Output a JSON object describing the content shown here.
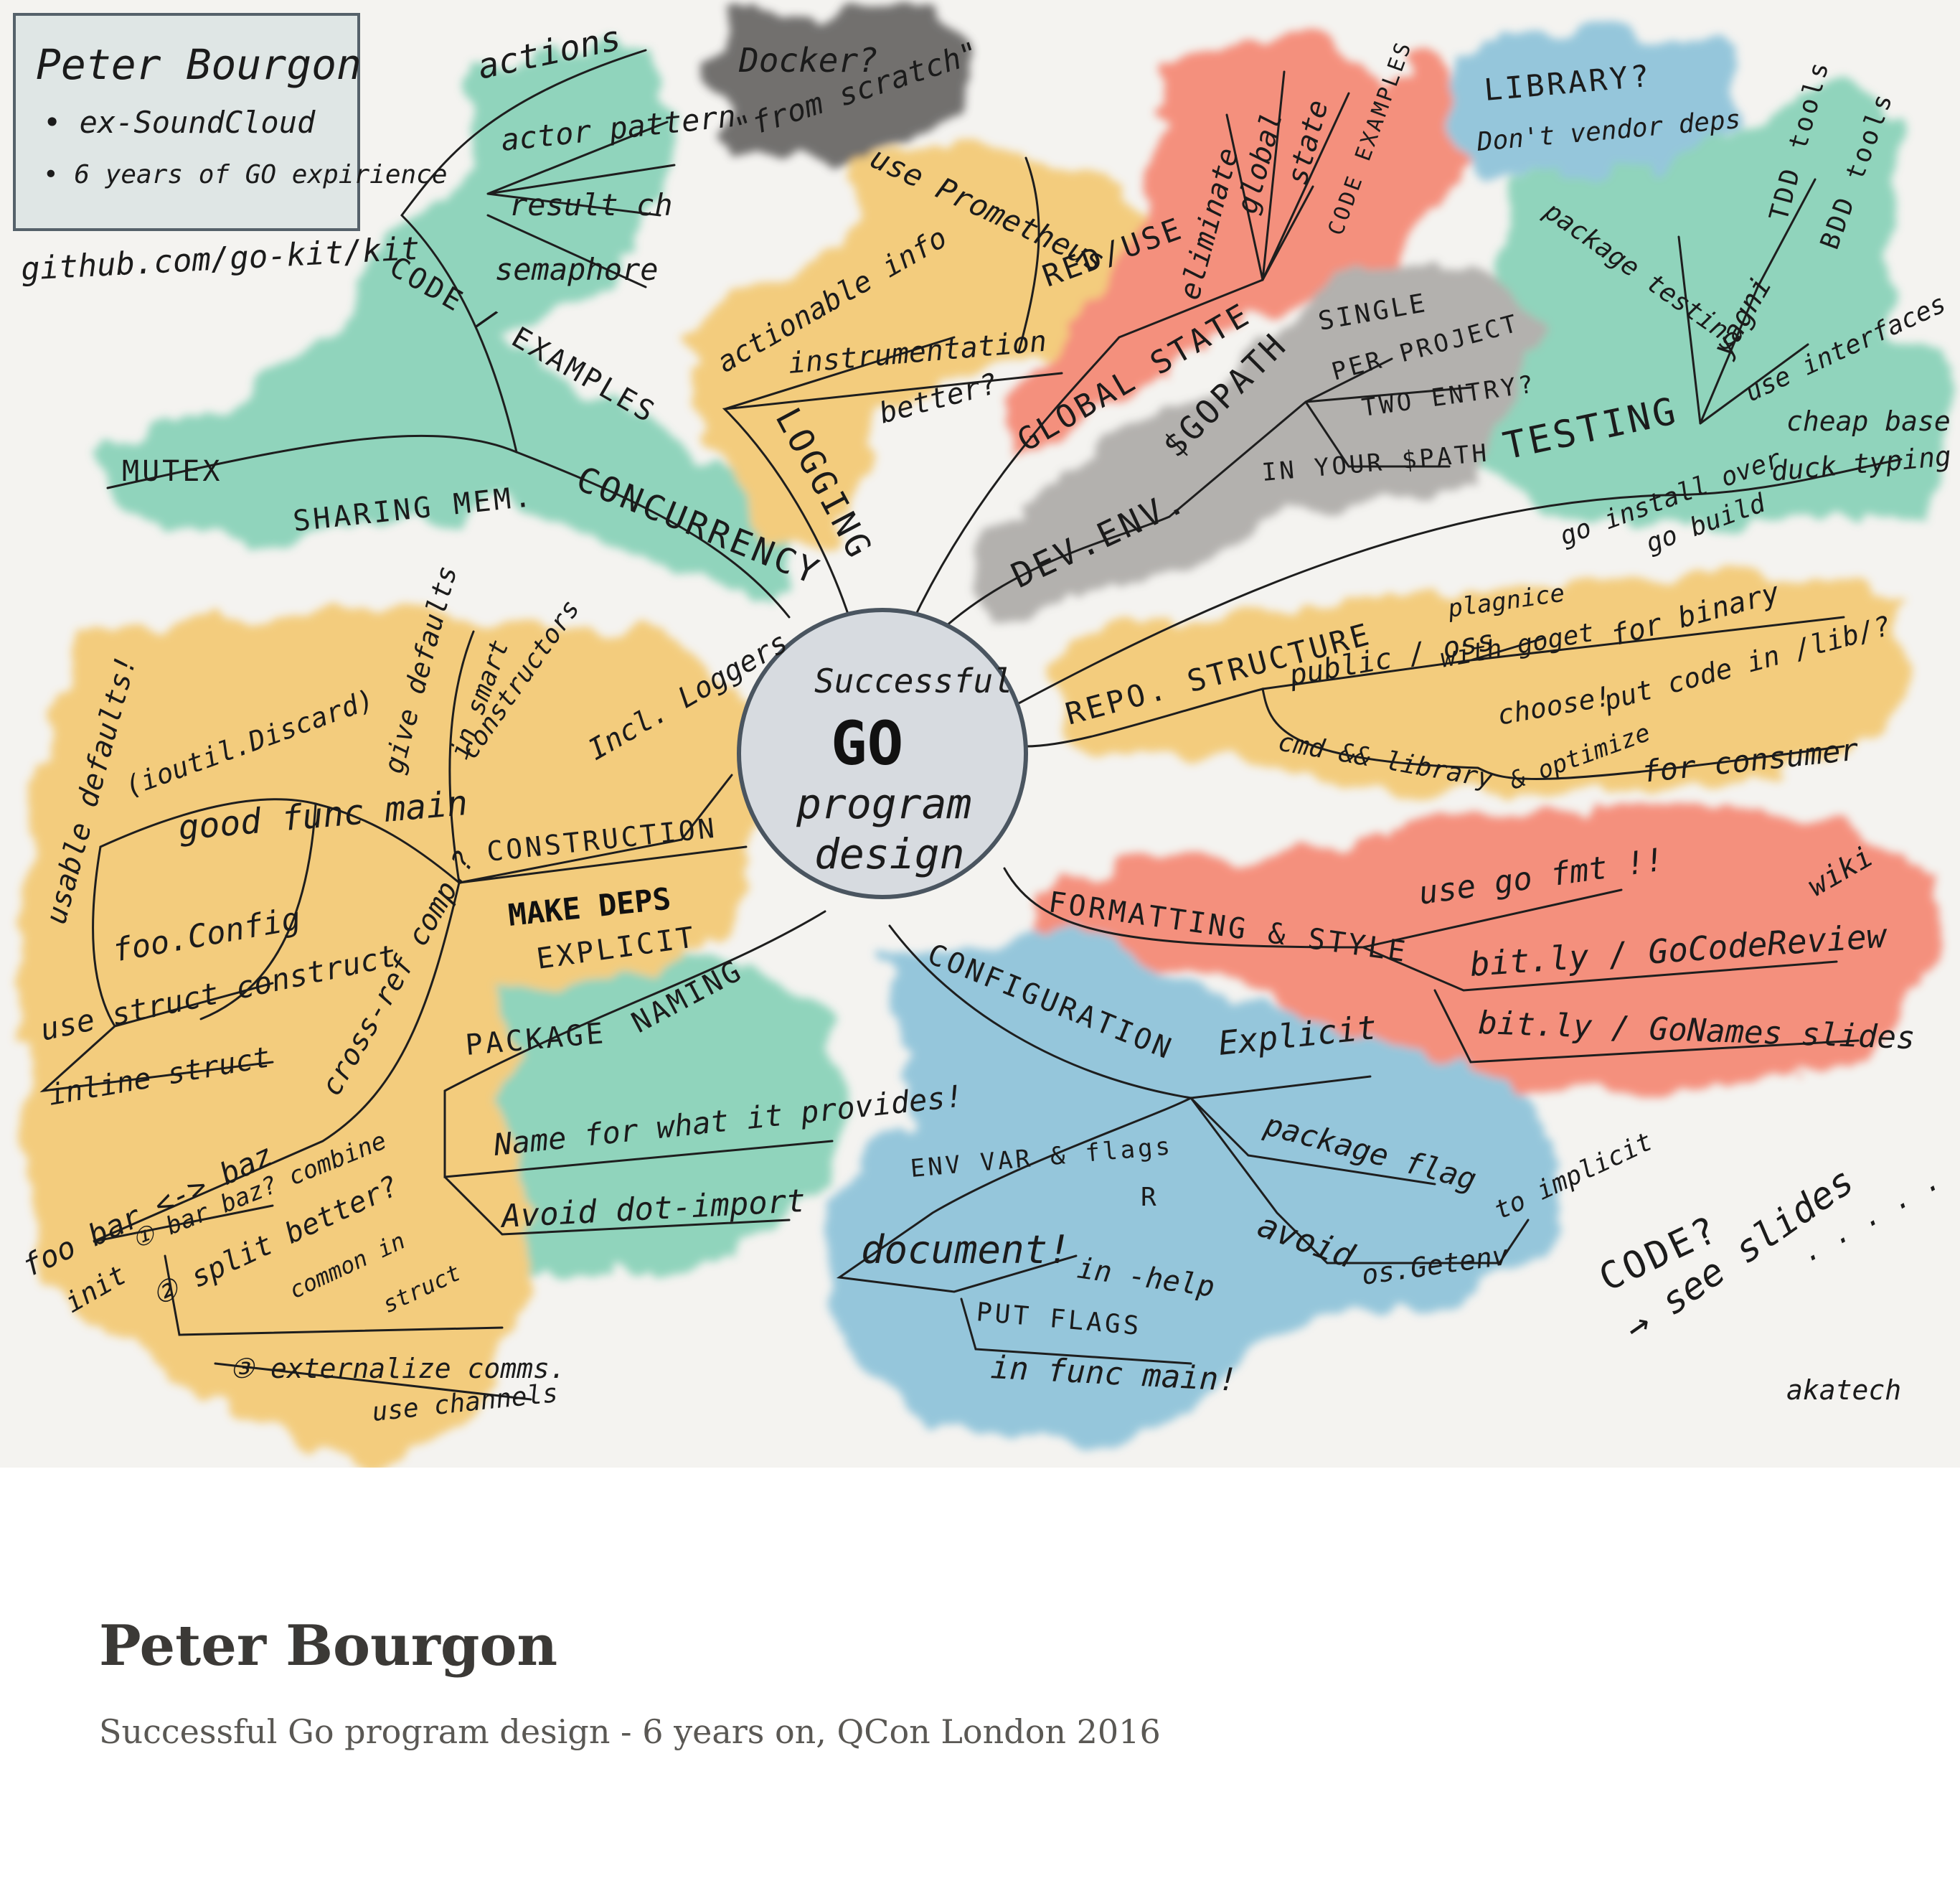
{
  "colors": {
    "green": "#7fcfb3",
    "yellow": "#f3c66b",
    "red": "#f57f69",
    "blue": "#85bfd8",
    "gray": "#a8a6a3",
    "dark": "#5b5a59",
    "center": "#d7dbe0",
    "accent_orange": "#f06a4d",
    "accent_blue": "#36a3dc"
  },
  "author_box": {
    "name": "Peter Bourgon",
    "bullet_1": "• ex-SoundCloud",
    "bullet_2": "• 6 years of GO expirience"
  },
  "github": "github.com/go-kit/kit",
  "center": {
    "line_1": "Successful",
    "line_2": "GO",
    "line_3": "program",
    "line_4": "design"
  },
  "concurrency": {
    "title": "CONCURRENCY",
    "code_examples": "CODE / EXAMPLES",
    "actions": "actions",
    "actor_pattern": "actor pattern",
    "result_ch": "result ch",
    "semaphore": "semaphore",
    "sharing_mem": "SHARING MEM.",
    "mutex": "MUTEX"
  },
  "docker": {
    "line_1": "Docker?",
    "line_2": "\"from scratch\""
  },
  "logging": {
    "title": "LOGGING",
    "use_prometheus": "use Prometheus",
    "red_use": "RED/USE",
    "actionable_info": "actionable info",
    "instrumentation": "instrumentation",
    "better": "better?"
  },
  "global_state": {
    "title": "GLOBAL STATE",
    "eliminate": "eliminate",
    "global": "global",
    "state": "state",
    "code_examples": "CODE EXAMPLES"
  },
  "library": {
    "line_1": "LIBRARY?",
    "line_2": "Don't vendor deps"
  },
  "testing": {
    "title": "TESTING",
    "package_testing": "package testing",
    "yagni": "yagni",
    "tdd_tools": "TDD tools",
    "bdd_tools": "BDD tools",
    "use_interfaces": "use interfaces",
    "cheap_base": "cheap base of",
    "duck_typing": "duck typing"
  },
  "dev_env": {
    "title": "DEV.ENV.",
    "gopath": "$GOPATH",
    "single": "SINGLE",
    "per_project": "PER PROJECT",
    "twoentry": "TWO ENTRY?",
    "in_your_path": "IN YOUR $PATH",
    "go_install": "go install over",
    "go_build": "go build"
  },
  "repo": {
    "title": "REPO. STRUCTURE",
    "public_oss": "public / oss",
    "plagnice": "plagnice",
    "with_goget": "with goget",
    "choose": "choose!",
    "for_binary": "for binary",
    "put_code": "put code in /lib/?",
    "cmd_library": "cmd && library",
    "optimize": "& optimize",
    "for_consumer": "for consumer"
  },
  "formatting": {
    "title": "FORMATTING & STYLE",
    "use_gofmt": "use go fmt !!",
    "wiki": "wiki",
    "code_review": "bit.ly / GoCodeReview",
    "go_names": "bit.ly / GoNames  slides"
  },
  "configuration": {
    "title": "CONFIGURATION",
    "explicit": "Explicit",
    "package_flag": "package flag",
    "to_implicit": "to implicit",
    "env_var_flags": "ENV VAR & flags",
    "r": "R",
    "document": "document!",
    "in_help": "in -help",
    "avoid": "avoid",
    "os_getenv": "os.Getenv",
    "put_flags": "PUT FLAGS",
    "in_func_main": "in func main!"
  },
  "naming": {
    "package": "PACKAGE",
    "naming": "NAMING",
    "name_for": "Name for what it provides!",
    "avoid_dot": "Avoid dot-import"
  },
  "construction": {
    "title": "CONSTRUCTION",
    "make_deps": "MAKE DEPS",
    "explicit": "EXPLICIT",
    "incl_loggers": "Incl. Loggers",
    "give_defaults": "give defaults",
    "in_smart": "in smart",
    "constructors": "constructors",
    "usable_defaults": "usable defaults!",
    "ioutil_discard": "(ioutil.Discard)",
    "good_func_main": "good func main",
    "foo_config": "foo.Config",
    "use_struct": "use struct construct",
    "inline_struct": "inline struct",
    "cross_ref": "cross-ref comp.?",
    "foo_bar_baz": "foo bar <-> baz",
    "init": "init",
    "combine": "① bar baz? combine",
    "split": "② split better?",
    "common_in": "common in",
    "struct": "struct",
    "externalize": "③ externalize comms.",
    "use_channels": "use channels"
  },
  "code_note": {
    "line_1": "CODE?",
    "line_2": "→ see slides",
    "dots": ". . . . ."
  },
  "signature": "akatech",
  "caption": {
    "title": "Peter Bourgon",
    "subtitle": "Successful Go program design - 6 years on, QCon London 2016"
  }
}
